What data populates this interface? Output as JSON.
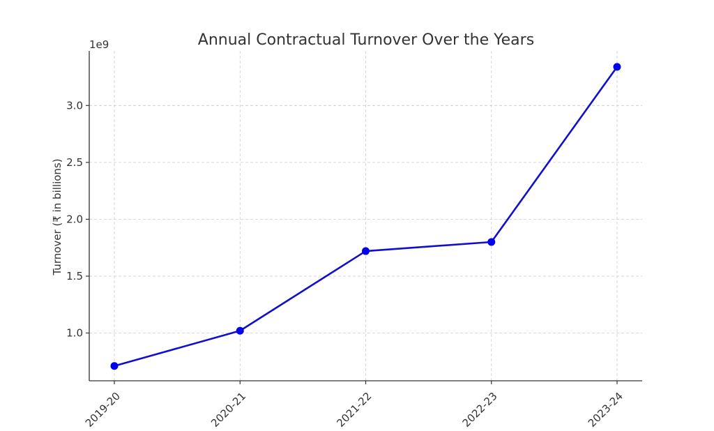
{
  "chart_data": {
    "type": "line",
    "title": "Annual Contractual Turnover Over the Years",
    "xlabel": "",
    "ylabel": "Turnover (₹ in billions)",
    "offset_label": "1e9",
    "categories": [
      "2019-20",
      "2020-21",
      "2021-22",
      "2022-23",
      "2023-24"
    ],
    "series": [
      {
        "values": [
          710000000,
          1020000000,
          1720000000,
          1800000000,
          3340000000
        ]
      }
    ],
    "y_ticks": [
      1.0,
      1.5,
      2.0,
      2.5,
      3.0
    ],
    "y_tick_labels": [
      "1.0",
      "1.5",
      "2.0",
      "2.5",
      "3.0"
    ],
    "ylim": [
      580000000,
      3480000000
    ],
    "grid": true,
    "line_color": "#1010cc",
    "marker_color": "#0000ee"
  }
}
